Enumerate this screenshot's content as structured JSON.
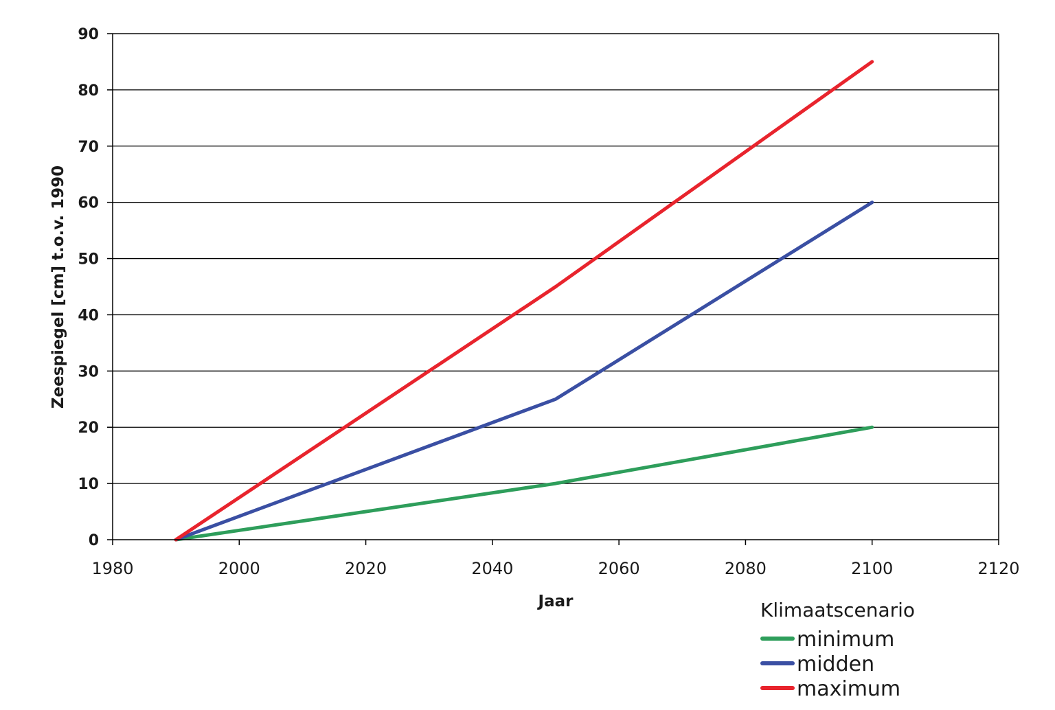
{
  "chart_data": {
    "type": "line",
    "xlabel": "Jaar",
    "ylabel": "Zeespiegel [cm] t.o.v. 1990",
    "xlim": [
      1980,
      2120
    ],
    "ylim": [
      0,
      90
    ],
    "xticks": [
      1980,
      2000,
      2020,
      2040,
      2060,
      2080,
      2100,
      2120
    ],
    "yticks": [
      0,
      10,
      20,
      30,
      40,
      50,
      60,
      70,
      80,
      90
    ],
    "grid": "horizontal",
    "legend": {
      "title": "Klimaatscenario",
      "placement": "bottom-right, below plot"
    },
    "series": [
      {
        "name": "minimum",
        "color": "#2e9e5b",
        "x": [
          1990,
          2050,
          2100
        ],
        "y": [
          0,
          10,
          20
        ]
      },
      {
        "name": "midden",
        "color": "#3a4fa3",
        "x": [
          1990,
          2050,
          2100
        ],
        "y": [
          0,
          25,
          60
        ]
      },
      {
        "name": "maximum",
        "color": "#e8242d",
        "x": [
          1990,
          2050,
          2100
        ],
        "y": [
          0,
          45,
          85
        ]
      }
    ]
  }
}
